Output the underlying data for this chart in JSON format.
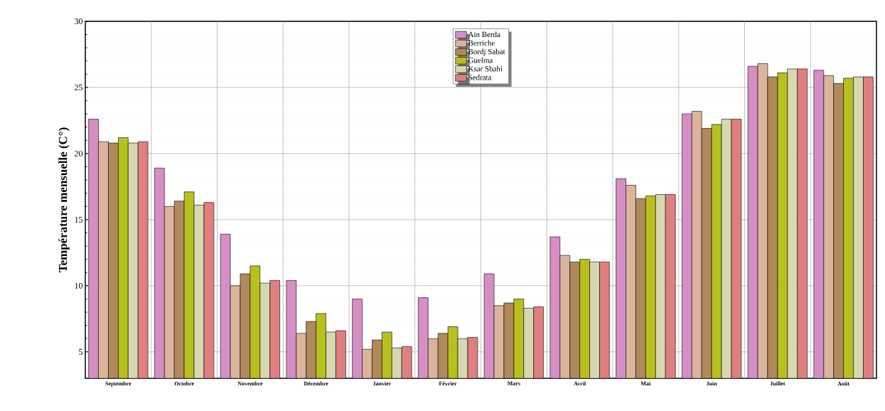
{
  "chart_data": {
    "type": "bar",
    "ylabel": "Température mensuelle (C°)",
    "categories": [
      "Septembre",
      "Octobre",
      "Novembre",
      "Décembre",
      "Janvier",
      "Février",
      "Mars",
      "Avril",
      "Mai",
      "Juin",
      "Juillet",
      "Août"
    ],
    "series": [
      {
        "name": "Ain Berda",
        "color": "#d58fc4",
        "values": [
          22.6,
          18.9,
          13.9,
          10.4,
          9.0,
          9.1,
          10.9,
          13.7,
          18.1,
          23.0,
          26.6,
          26.3
        ]
      },
      {
        "name": "Berriche",
        "color": "#dcb49c",
        "values": [
          20.9,
          16.0,
          10.0,
          6.4,
          5.2,
          6.0,
          8.5,
          12.3,
          17.6,
          23.2,
          26.8,
          25.9
        ]
      },
      {
        "name": "Bordj Sabat",
        "color": "#b08a5a",
        "values": [
          20.8,
          16.4,
          10.9,
          7.3,
          5.9,
          6.4,
          8.7,
          11.8,
          16.6,
          21.9,
          25.8,
          25.3
        ]
      },
      {
        "name": "Guelma",
        "color": "#b8c020",
        "values": [
          21.2,
          17.1,
          11.5,
          7.9,
          6.5,
          6.9,
          9.0,
          12.0,
          16.8,
          22.2,
          26.1,
          25.7
        ]
      },
      {
        "name": "Ksar Sbahi",
        "color": "#d8d8b0",
        "values": [
          20.8,
          16.1,
          10.2,
          6.5,
          5.3,
          6.0,
          8.3,
          11.8,
          16.9,
          22.6,
          26.4,
          25.8
        ]
      },
      {
        "name": "Sedrata",
        "color": "#e07f80",
        "values": [
          20.9,
          16.3,
          10.4,
          6.6,
          5.4,
          6.1,
          8.4,
          11.8,
          16.9,
          22.6,
          26.4,
          25.8
        ]
      }
    ],
    "ylim": [
      3,
      30
    ],
    "yticks": [
      5,
      10,
      15,
      20,
      25,
      30
    ],
    "grid": true,
    "legend": "top"
  }
}
